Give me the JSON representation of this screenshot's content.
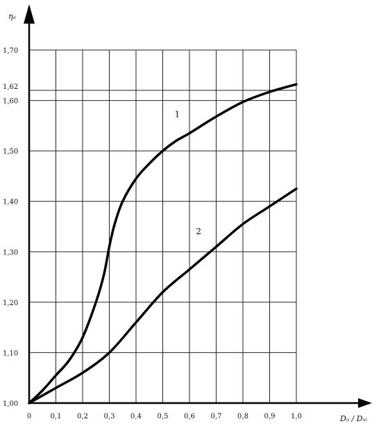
{
  "chart_data": {
    "type": "line",
    "title": "",
    "xlabel": "Dₒ / Dₓᵢ",
    "ylabel": "ηₐ",
    "xlim": [
      0,
      1.0
    ],
    "ylim": [
      1.0,
      1.7
    ],
    "grid": true,
    "x_ticks": [
      0,
      0.1,
      0.2,
      0.3,
      0.4,
      0.5,
      0.6,
      0.7,
      0.8,
      0.9,
      1.0
    ],
    "x_tick_labels": [
      "0",
      "0,1",
      "0,2",
      "0,3",
      "0,4",
      "0,5",
      "0,6",
      "0,7",
      "0,8",
      "0,9",
      "1,0"
    ],
    "y_ticks": [
      1.0,
      1.1,
      1.2,
      1.3,
      1.4,
      1.5,
      1.6,
      1.62,
      1.7
    ],
    "y_tick_labels": [
      "1,00",
      "1,10",
      "1,20",
      "1,30",
      "1,40",
      "1,50",
      "1,60",
      "1,62",
      "1,70"
    ],
    "series": [
      {
        "label": "1",
        "x": [
          0,
          0.05,
          0.1,
          0.15,
          0.2,
          0.25,
          0.28,
          0.3,
          0.32,
          0.35,
          0.4,
          0.45,
          0.5,
          0.55,
          0.6,
          0.7,
          0.8,
          0.9,
          1.0
        ],
        "y": [
          1.0,
          1.025,
          1.055,
          1.085,
          1.13,
          1.2,
          1.255,
          1.31,
          1.355,
          1.4,
          1.445,
          1.475,
          1.5,
          1.52,
          1.535,
          1.568,
          1.597,
          1.617,
          1.632
        ]
      },
      {
        "label": "2",
        "x": [
          0,
          0.1,
          0.2,
          0.3,
          0.4,
          0.5,
          0.6,
          0.7,
          0.8,
          0.9,
          1.0
        ],
        "y": [
          1.0,
          1.03,
          1.06,
          1.1,
          1.16,
          1.22,
          1.265,
          1.31,
          1.355,
          1.39,
          1.425
        ]
      }
    ]
  }
}
